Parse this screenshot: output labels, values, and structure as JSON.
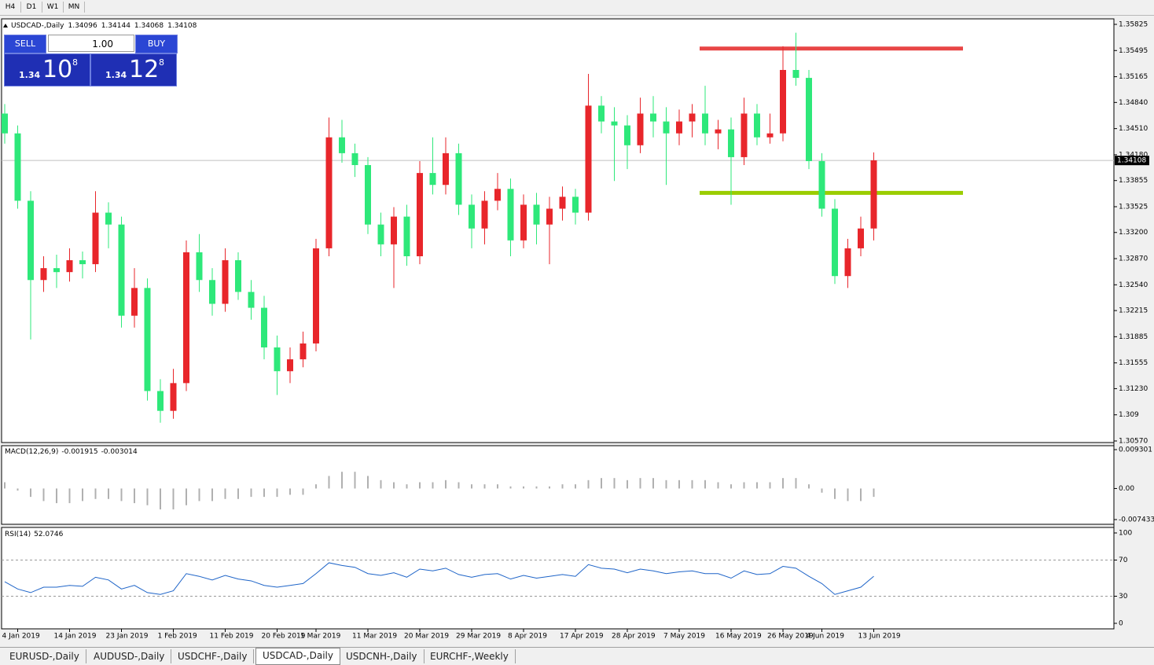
{
  "toolbar": {
    "timeframes": [
      "H4",
      "D1",
      "W1",
      "MN"
    ]
  },
  "trade_panel": {
    "sell": "SELL",
    "buy": "BUY",
    "volume": "1.00",
    "bid": {
      "big": "1.34",
      "pips": "10",
      "frac": "8"
    },
    "ask": {
      "big": "1.34",
      "pips": "12",
      "frac": "8"
    }
  },
  "chart_data": [
    {
      "type": "candlestick",
      "title": "USDCAD-,Daily",
      "ohlc": [
        1.34096,
        1.34144,
        1.34068,
        1.34108
      ],
      "categories": [
        null,
        "4 Jan 2019",
        null,
        null,
        null,
        "14 Jan 2019",
        null,
        null,
        null,
        "23 Jan 2019",
        null,
        null,
        null,
        "1 Feb 2019",
        null,
        null,
        null,
        "11 Feb 2019",
        null,
        null,
        null,
        "20 Feb 2019",
        null,
        null,
        "1 Mar 2019",
        null,
        null,
        null,
        "11 Mar 2019",
        null,
        null,
        null,
        "20 Mar 2019",
        null,
        null,
        null,
        "29 Mar 2019",
        null,
        null,
        null,
        "8 Apr 2019",
        null,
        null,
        null,
        "17 Apr 2019",
        null,
        null,
        null,
        "28 Apr 2019",
        null,
        null,
        null,
        "7 May 2019",
        null,
        null,
        null,
        "16 May 2019",
        null,
        null,
        null,
        "26 May 2019",
        null,
        null,
        "4 Jun 2019",
        null,
        null,
        null,
        "13 Jun 2019"
      ],
      "open": [
        1.347,
        1.3445,
        1.336,
        1.326,
        1.3275,
        1.327,
        1.3285,
        1.328,
        1.3345,
        1.333,
        1.3215,
        1.325,
        1.312,
        1.3095,
        1.313,
        1.3295,
        1.326,
        1.323,
        1.3285,
        1.3245,
        1.3225,
        1.3175,
        1.3145,
        1.316,
        1.318,
        1.33,
        1.344,
        1.342,
        1.3405,
        1.333,
        1.3305,
        1.334,
        1.329,
        1.3395,
        1.338,
        1.342,
        1.3355,
        1.3325,
        1.336,
        1.3375,
        1.331,
        1.3355,
        1.333,
        1.335,
        1.3365,
        1.3345,
        1.348,
        1.346,
        1.3455,
        1.343,
        1.347,
        1.346,
        1.3445,
        1.346,
        1.347,
        1.3445,
        1.345,
        1.3415,
        1.347,
        1.344,
        1.3445,
        1.3525,
        1.3515,
        1.341,
        1.335,
        1.3265,
        1.33,
        1.3325
      ],
      "high": [
        1.3482,
        1.3455,
        1.3372,
        1.329,
        1.3292,
        1.33,
        1.3296,
        1.3372,
        1.3358,
        1.334,
        1.3275,
        1.3262,
        1.3135,
        1.3148,
        1.331,
        1.3318,
        1.3275,
        1.33,
        1.3295,
        1.326,
        1.324,
        1.319,
        1.3175,
        1.3195,
        1.3312,
        1.3465,
        1.3462,
        1.3432,
        1.3415,
        1.3345,
        1.3352,
        1.3355,
        1.341,
        1.344,
        1.344,
        1.3432,
        1.3368,
        1.3372,
        1.3395,
        1.3388,
        1.3368,
        1.337,
        1.3365,
        1.3378,
        1.3375,
        1.352,
        1.3492,
        1.3478,
        1.3468,
        1.349,
        1.3492,
        1.3478,
        1.3475,
        1.3482,
        1.3505,
        1.3462,
        1.3465,
        1.349,
        1.3482,
        1.347,
        1.3555,
        1.3572,
        1.3525,
        1.342,
        1.3362,
        1.3312,
        1.334,
        1.3421
      ],
      "low": [
        1.3432,
        1.335,
        1.3185,
        1.3245,
        1.325,
        1.3258,
        1.3262,
        1.327,
        1.33,
        1.32,
        1.32,
        1.3108,
        1.308,
        1.3085,
        1.312,
        1.3245,
        1.3215,
        1.322,
        1.3235,
        1.321,
        1.316,
        1.3115,
        1.313,
        1.315,
        1.317,
        1.329,
        1.3408,
        1.339,
        1.3318,
        1.329,
        1.325,
        1.3278,
        1.328,
        1.3368,
        1.3368,
        1.3342,
        1.33,
        1.3305,
        1.3348,
        1.329,
        1.33,
        1.3305,
        1.328,
        1.3335,
        1.333,
        1.3335,
        1.3445,
        1.3385,
        1.34,
        1.342,
        1.344,
        1.338,
        1.343,
        1.344,
        1.343,
        1.3425,
        1.3355,
        1.3405,
        1.343,
        1.3432,
        1.3435,
        1.3505,
        1.34,
        1.334,
        1.3255,
        1.325,
        1.329,
        1.331
      ],
      "close": [
        1.3445,
        1.336,
        1.326,
        1.3275,
        1.327,
        1.3285,
        1.328,
        1.3345,
        1.333,
        1.3215,
        1.325,
        1.312,
        1.3095,
        1.313,
        1.3295,
        1.326,
        1.323,
        1.3285,
        1.3245,
        1.3225,
        1.3175,
        1.3145,
        1.316,
        1.318,
        1.33,
        1.344,
        1.342,
        1.3405,
        1.333,
        1.3305,
        1.334,
        1.329,
        1.3395,
        1.338,
        1.342,
        1.3355,
        1.3325,
        1.336,
        1.3375,
        1.331,
        1.3355,
        1.333,
        1.335,
        1.3365,
        1.3345,
        1.348,
        1.346,
        1.3455,
        1.343,
        1.347,
        1.346,
        1.3445,
        1.346,
        1.347,
        1.3445,
        1.345,
        1.3415,
        1.347,
        1.344,
        1.3445,
        1.3525,
        1.3515,
        1.341,
        1.335,
        1.3265,
        1.33,
        1.3325,
        1.3411
      ],
      "up_color": "#e8262b",
      "down_color": "#2ee87a",
      "ylim": [
        1.3057,
        1.35825
      ],
      "yticks": [
        {
          "value": 1.3057,
          "label": "1.30570"
        },
        1.309,
        {
          "value": 1.3123,
          "label": "1.31230"
        },
        1.31555,
        1.31885,
        1.32215,
        {
          "value": 1.3254,
          "label": "1.32540"
        },
        {
          "value": 1.3287,
          "label": "1.32870"
        },
        {
          "value": 1.332,
          "label": "1.33200"
        },
        1.33525,
        1.33855,
        {
          "value": 1.3418,
          "label": "1.34180"
        },
        {
          "value": 1.3451,
          "label": "1.34510"
        },
        {
          "value": 1.3484,
          "label": "1.34840"
        },
        1.35165,
        1.35495,
        1.35825
      ],
      "current_price": {
        "value": 1.34108,
        "label": "1.34108"
      },
      "hlines": [
        {
          "value": 1.3552,
          "color": "#e84545"
        },
        {
          "value": 1.337,
          "color": "#9acd00"
        }
      ]
    },
    {
      "type": "histogram",
      "title": "MACD(12,26,9)",
      "readout": [
        -0.001915,
        -0.003014
      ],
      "color": "#b0b0b0",
      "values": [
        0.0015,
        -0.0005,
        -0.002,
        -0.003,
        -0.0035,
        -0.0035,
        -0.003,
        -0.0025,
        -0.0025,
        -0.003,
        -0.0035,
        -0.004,
        -0.005,
        -0.005,
        -0.004,
        -0.003,
        -0.003,
        -0.0025,
        -0.0025,
        -0.002,
        -0.002,
        -0.002,
        -0.0015,
        -0.0015,
        0.001,
        0.003,
        0.004,
        0.004,
        0.003,
        0.002,
        0.0015,
        0.001,
        0.0015,
        0.0015,
        0.002,
        0.0015,
        0.001,
        0.001,
        0.001,
        0.0005,
        0.0005,
        0.0005,
        0.0005,
        0.001,
        0.001,
        0.002,
        0.0025,
        0.0025,
        0.002,
        0.0025,
        0.0025,
        0.002,
        0.002,
        0.002,
        0.002,
        0.0015,
        0.001,
        0.0015,
        0.0015,
        0.0015,
        0.0025,
        0.0025,
        0.001,
        -0.001,
        -0.0025,
        -0.003,
        -0.003,
        -0.002
      ],
      "ylim": [
        -0.007433,
        0.009301
      ],
      "yticks": [
        -0.007433,
        {
          "value": 0,
          "label": "0.00"
        },
        0.009301
      ]
    },
    {
      "type": "line",
      "title": "RSI(14)",
      "readout": 52.0746,
      "color": "#1e64c8",
      "values": [
        46,
        38,
        34,
        40,
        40,
        42,
        41,
        51,
        48,
        38,
        42,
        34,
        32,
        36,
        55,
        52,
        48,
        53,
        49,
        47,
        42,
        40,
        42,
        44,
        55,
        67,
        64,
        62,
        55,
        53,
        56,
        51,
        60,
        58,
        61,
        54,
        51,
        54,
        55,
        49,
        53,
        50,
        52,
        54,
        52,
        65,
        61,
        60,
        56,
        60,
        58,
        55,
        57,
        58,
        55,
        55,
        50,
        58,
        54,
        55,
        63,
        61,
        52,
        44,
        32,
        36,
        40,
        52.0746
      ],
      "ylim": [
        0,
        100
      ],
      "yticks": [
        0,
        30,
        70,
        100
      ]
    }
  ],
  "symbol_tabs": [
    "EURUSD-,Daily",
    "AUDUSD-,Daily",
    "USDCHF-,Daily",
    "USDCAD-,Daily",
    "USDCNH-,Daily",
    "EURCHF-,Weekly"
  ]
}
